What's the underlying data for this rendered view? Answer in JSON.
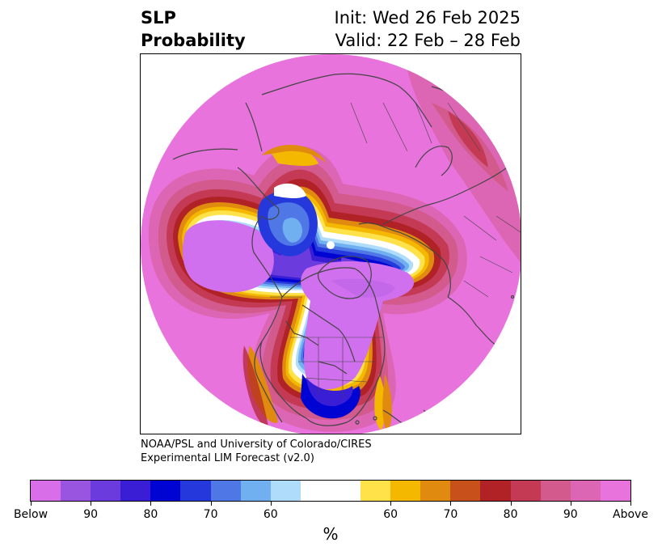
{
  "title": {
    "variable_line1": "SLP",
    "variable_line2": "Probability",
    "init": "Init: Wed 26 Feb 2025",
    "valid": "Valid: 22 Feb – 28 Feb"
  },
  "credit": {
    "line1": "NOAA/PSL and University of Colorado/CIRES",
    "line2": "Experimental LIM Forecast (v2.0)"
  },
  "colorbar": {
    "unit": "%",
    "colors": [
      "#d86ee8",
      "#9a55e0",
      "#6b3bdd",
      "#3a1ed6",
      "#0004d2",
      "#2438db",
      "#4f78e6",
      "#71b0f0",
      "#aedcfa",
      "#ffffff",
      "#ffe14a",
      "#f5b800",
      "#e08a10",
      "#c8501a",
      "#b02226",
      "#c43a55",
      "#d25a8c",
      "#dd66b4",
      "#e873dc"
    ],
    "ticks": [
      "Below",
      "90",
      "80",
      "70",
      "60",
      "60",
      "70",
      "80",
      "90",
      "Above"
    ]
  },
  "map": {
    "colors": {
      "background_above": "#e873dc",
      "above_strong": "#d25a8c",
      "below": "#d070ee",
      "below_core": "#0004d2",
      "ring_white": "#ffffff",
      "coast": "#444444"
    }
  }
}
